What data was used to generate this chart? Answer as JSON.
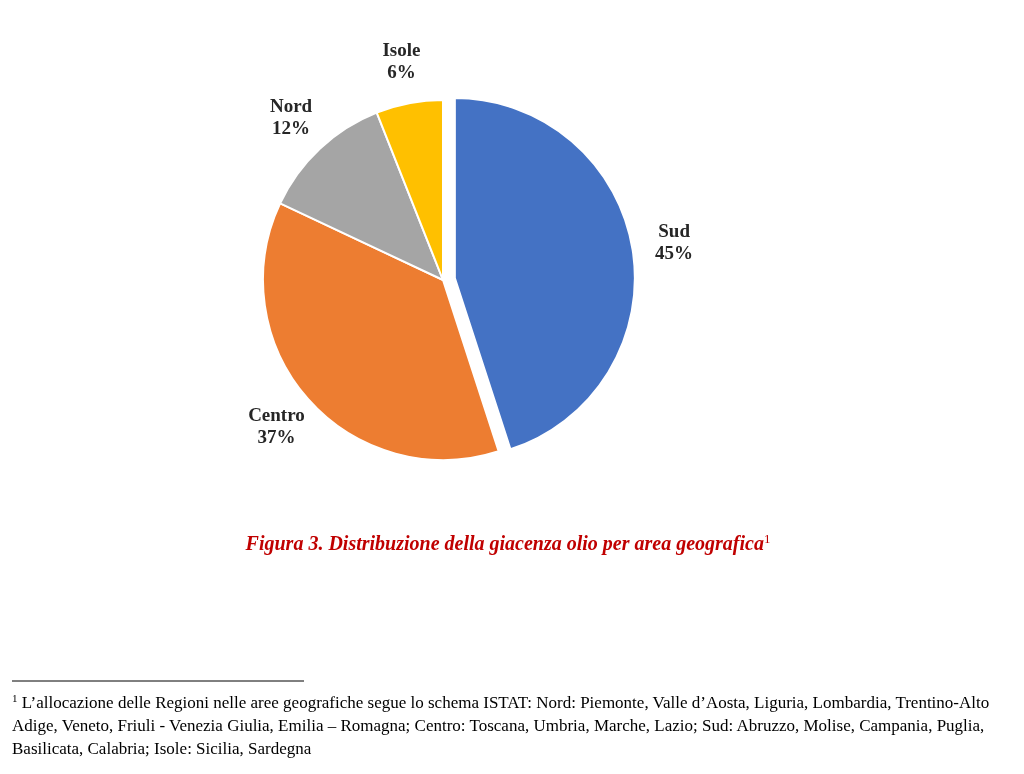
{
  "chart_data": {
    "type": "pie",
    "title": "Figura 3. Distribuzione della giacenza olio per area geografica$^{1}$",
    "categories": [
      "Sud",
      "Centro",
      "Nord",
      "Isole"
    ],
    "values": [
      45,
      37,
      12,
      6
    ],
    "colors": [
      "#4472c4",
      "#ed7d31",
      "#a5a5a5",
      "#ffc000"
    ],
    "value_labels": [
      "45%",
      "37%",
      "12%",
      "6%"
    ],
    "annotations": [
      "$^{1}$ L’allocazione delle Regioni nelle aree geografiche segue lo schema ISTAT: Nord: Piemonte, Valle d’Aosta, Liguria, Lombardia, Trentino-Alto Adige, Veneto, Friuli - Venezia Giulia, Emilia – Romagna; Centro: Toscana, Umbria, Marche, Lazio; Sud: Abruzzo, Molise, Campania, Puglia, Basilicata, Calabria; Isole: Sicilia, Sardegna"
    ]
  }
}
